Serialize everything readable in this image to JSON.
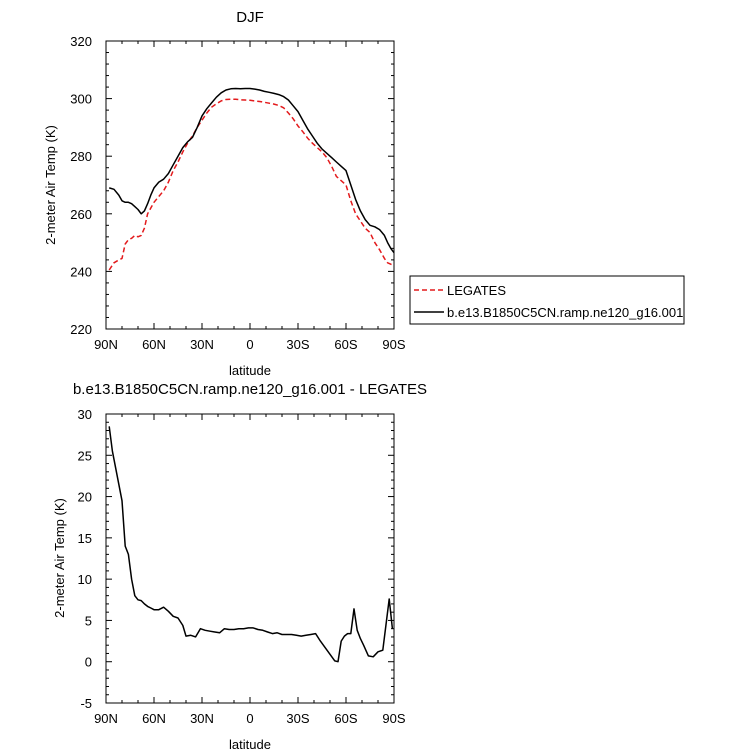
{
  "chart_data": [
    {
      "type": "line",
      "title": "DJF",
      "xlabel": "latitude",
      "ylabel": "2-meter Air Temp (K)",
      "xlim": [
        90,
        -90
      ],
      "ylim": [
        220,
        320
      ],
      "xticks": [
        {
          "value": 90,
          "label": "90N"
        },
        {
          "value": 60,
          "label": "60N"
        },
        {
          "value": 30,
          "label": "30N"
        },
        {
          "value": 0,
          "label": "0"
        },
        {
          "value": -30,
          "label": "30S"
        },
        {
          "value": -60,
          "label": "60S"
        },
        {
          "value": -90,
          "label": "90S"
        }
      ],
      "yticks": [
        220,
        240,
        260,
        280,
        300,
        320
      ],
      "grid": false,
      "legend_position": "right, outside plot",
      "series": [
        {
          "name": "LEGATES",
          "color": "#e31a1c",
          "dash": "dashed",
          "x": [
            88,
            85,
            82,
            80,
            78,
            76,
            74,
            72,
            70,
            68,
            66,
            64,
            62,
            60,
            57,
            54,
            51,
            48,
            45,
            42,
            39,
            36,
            33,
            30,
            27,
            24,
            21,
            18,
            15,
            12,
            9,
            6,
            3,
            0,
            -3,
            -6,
            -9,
            -12,
            -15,
            -18,
            -21,
            -24,
            -27,
            -30,
            -33,
            -36,
            -39,
            -42,
            -45,
            -48,
            -51,
            -54,
            -57,
            -60,
            -63,
            -66,
            -69,
            -72,
            -75,
            -78,
            -81,
            -84,
            -86,
            -88,
            -90
          ],
          "values": [
            240.5,
            243,
            244,
            244.5,
            249.5,
            251,
            251.5,
            252.5,
            252,
            252.5,
            255,
            260,
            262,
            264,
            266,
            268,
            271,
            275,
            278,
            281.5,
            284.5,
            287,
            290,
            292.5,
            295,
            297,
            298.2,
            299.2,
            299.7,
            299.8,
            299.8,
            299.6,
            299.5,
            299.4,
            299.2,
            299,
            298.7,
            298.4,
            298.1,
            297.6,
            296.8,
            295,
            293,
            290.5,
            288.5,
            286.3,
            284.5,
            283,
            281.5,
            279.5,
            276.5,
            273,
            271.5,
            270,
            264.5,
            260,
            257.5,
            255,
            253.5,
            250,
            247.5,
            244.5,
            243,
            242.5,
            242
          ]
        },
        {
          "name": "b.e13.B1850C5CN.ramp.ne120_g16.001",
          "color": "#000000",
          "dash": "solid",
          "x": [
            88,
            85,
            82,
            80,
            78,
            76,
            74,
            72,
            70,
            68,
            66,
            64,
            62,
            60,
            57,
            54,
            51,
            48,
            45,
            42,
            39,
            36,
            33,
            30,
            27,
            24,
            21,
            18,
            15,
            12,
            9,
            6,
            3,
            0,
            -3,
            -6,
            -9,
            -12,
            -15,
            -18,
            -21,
            -24,
            -27,
            -30,
            -33,
            -36,
            -39,
            -42,
            -45,
            -48,
            -51,
            -54,
            -57,
            -60,
            -63,
            -66,
            -69,
            -72,
            -75,
            -78,
            -81,
            -84,
            -86,
            -88,
            -90
          ],
          "values": [
            269,
            268.5,
            266.5,
            264.5,
            264,
            264,
            263.5,
            262.5,
            261.5,
            260,
            261,
            263.5,
            266.5,
            269,
            271,
            272,
            274,
            277,
            280,
            283,
            285,
            286.5,
            290,
            294,
            296.5,
            298.5,
            300.5,
            302,
            303,
            303.4,
            303.5,
            303.4,
            303.5,
            303.5,
            303.3,
            303,
            302.5,
            302.2,
            301.8,
            301.4,
            300.7,
            299.5,
            297.5,
            295.5,
            292.5,
            289.5,
            287,
            284.5,
            282.5,
            281,
            279.5,
            278,
            276.5,
            275,
            270,
            265,
            261,
            258,
            256,
            255.5,
            254.5,
            252.5,
            250,
            248,
            246.5
          ]
        }
      ]
    },
    {
      "type": "line",
      "title": "b.e13.B1850C5CN.ramp.ne120_g16.001 - LEGATES",
      "xlabel": "latitude",
      "ylabel": "2-meter Air Temp (K)",
      "xlim": [
        90,
        -90
      ],
      "ylim": [
        -5,
        30
      ],
      "xticks": [
        {
          "value": 90,
          "label": "90N"
        },
        {
          "value": 60,
          "label": "60N"
        },
        {
          "value": 30,
          "label": "30N"
        },
        {
          "value": 0,
          "label": "0"
        },
        {
          "value": -30,
          "label": "30S"
        },
        {
          "value": -60,
          "label": "60S"
        },
        {
          "value": -90,
          "label": "90S"
        }
      ],
      "yticks": [
        -5,
        0,
        5,
        10,
        15,
        20,
        25,
        30
      ],
      "grid": false,
      "series": [
        {
          "color": "#000000",
          "dash": "solid",
          "x": [
            88,
            86,
            84,
            82,
            80,
            78,
            76,
            74,
            72,
            70,
            68,
            66,
            64,
            62,
            60,
            57,
            54,
            51,
            48,
            45,
            42,
            40,
            37,
            34,
            31,
            28,
            25,
            22,
            19,
            16,
            13,
            10,
            7,
            4,
            1,
            -2,
            -5,
            -8,
            -11,
            -14,
            -17,
            -20,
            -23,
            -26,
            -29,
            -32,
            -35,
            -38,
            -41,
            -44,
            -47,
            -50,
            -53,
            -55,
            -57,
            -59,
            -61,
            -63,
            -65,
            -67,
            -69,
            -71,
            -74,
            -77,
            -80,
            -83,
            -85,
            -87,
            -89
          ],
          "values": [
            28.5,
            25.5,
            23.5,
            21.5,
            19.5,
            14,
            13,
            10,
            8,
            7.5,
            7.4,
            7,
            6.7,
            6.5,
            6.3,
            6.3,
            6.6,
            6.1,
            5.5,
            5.3,
            4.4,
            3.1,
            3.2,
            3,
            4,
            3.8,
            3.7,
            3.6,
            3.5,
            4,
            3.9,
            3.9,
            4,
            4,
            4.1,
            4.1,
            3.9,
            3.8,
            3.6,
            3.4,
            3.5,
            3.3,
            3.3,
            3.3,
            3.2,
            3.1,
            3.2,
            3.3,
            3.4,
            2.5,
            1.7,
            0.9,
            0.1,
            0,
            2.5,
            3.1,
            3.4,
            3.4,
            6.4,
            3.8,
            2.8,
            2,
            0.7,
            0.6,
            1.2,
            1.4,
            4.5,
            7.6,
            4
          ]
        }
      ]
    }
  ]
}
